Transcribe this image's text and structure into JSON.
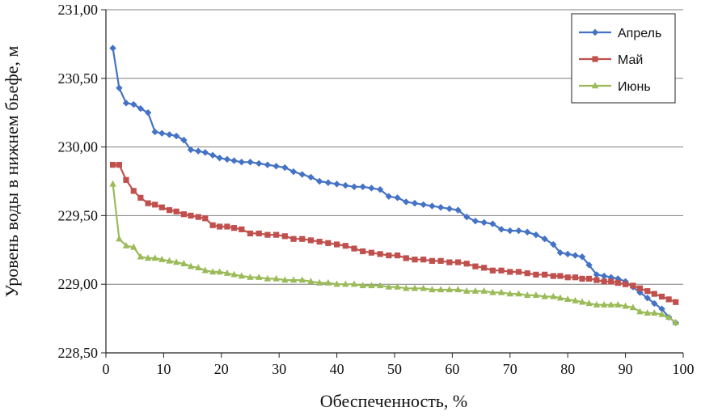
{
  "chart_data": {
    "type": "line",
    "xlabel": "Обеспеченность, %",
    "ylabel": "Уровень воды в нижнем бьефе, м",
    "xlim": [
      0,
      100
    ],
    "ylim": [
      228.5,
      231.0
    ],
    "x_ticks": [
      "0",
      "10",
      "20",
      "30",
      "40",
      "50",
      "60",
      "70",
      "80",
      "90",
      "100"
    ],
    "y_ticks": [
      "228,50",
      "229,00",
      "229,50",
      "230,00",
      "230,50",
      "231,00"
    ],
    "grid": "horizontal",
    "legend_position": "top-right",
    "series": [
      {
        "name": "Апрель",
        "color": "#4472C4",
        "marker": "diamond",
        "points": [
          [
            1.2,
            230.72
          ],
          [
            2.3,
            230.43
          ],
          [
            3.5,
            230.32
          ],
          [
            4.8,
            230.31
          ],
          [
            6.0,
            230.28
          ],
          [
            7.3,
            230.25
          ],
          [
            8.5,
            230.11
          ],
          [
            9.7,
            230.1
          ],
          [
            11.0,
            230.09
          ],
          [
            12.2,
            230.08
          ],
          [
            13.5,
            230.05
          ],
          [
            14.7,
            229.98
          ],
          [
            16.0,
            229.97
          ],
          [
            17.2,
            229.96
          ],
          [
            18.5,
            229.94
          ],
          [
            19.7,
            229.92
          ],
          [
            21.0,
            229.91
          ],
          [
            22.2,
            229.9
          ],
          [
            23.5,
            229.89
          ],
          [
            25.0,
            229.89
          ],
          [
            26.5,
            229.88
          ],
          [
            28.0,
            229.87
          ],
          [
            29.5,
            229.86
          ],
          [
            31.0,
            229.85
          ],
          [
            32.5,
            229.82
          ],
          [
            34.0,
            229.8
          ],
          [
            35.5,
            229.78
          ],
          [
            37.0,
            229.75
          ],
          [
            38.5,
            229.74
          ],
          [
            40.0,
            229.73
          ],
          [
            41.5,
            229.72
          ],
          [
            43.0,
            229.71
          ],
          [
            44.5,
            229.71
          ],
          [
            46.0,
            229.7
          ],
          [
            47.5,
            229.69
          ],
          [
            49.0,
            229.64
          ],
          [
            50.5,
            229.63
          ],
          [
            52.0,
            229.6
          ],
          [
            53.5,
            229.59
          ],
          [
            55.0,
            229.58
          ],
          [
            56.5,
            229.57
          ],
          [
            58.0,
            229.56
          ],
          [
            59.5,
            229.55
          ],
          [
            61.0,
            229.54
          ],
          [
            62.5,
            229.49
          ],
          [
            64.0,
            229.46
          ],
          [
            65.5,
            229.45
          ],
          [
            67.0,
            229.44
          ],
          [
            68.5,
            229.4
          ],
          [
            70.0,
            229.39
          ],
          [
            71.5,
            229.39
          ],
          [
            73.0,
            229.38
          ],
          [
            74.5,
            229.36
          ],
          [
            76.0,
            229.33
          ],
          [
            77.5,
            229.29
          ],
          [
            78.7,
            229.23
          ],
          [
            80.0,
            229.22
          ],
          [
            81.3,
            229.21
          ],
          [
            82.5,
            229.2
          ],
          [
            83.7,
            229.14
          ],
          [
            85.0,
            229.07
          ],
          [
            86.3,
            229.06
          ],
          [
            87.5,
            229.05
          ],
          [
            88.7,
            229.04
          ],
          [
            90.0,
            229.02
          ],
          [
            91.3,
            228.98
          ],
          [
            92.5,
            228.94
          ],
          [
            93.8,
            228.9
          ],
          [
            95.0,
            228.86
          ],
          [
            96.3,
            228.82
          ],
          [
            97.5,
            228.76
          ],
          [
            98.7,
            228.72
          ]
        ]
      },
      {
        "name": "Май",
        "color": "#C0504D",
        "marker": "square",
        "points": [
          [
            1.2,
            229.87
          ],
          [
            2.3,
            229.87
          ],
          [
            3.5,
            229.76
          ],
          [
            4.8,
            229.68
          ],
          [
            6.0,
            229.63
          ],
          [
            7.3,
            229.59
          ],
          [
            8.5,
            229.58
          ],
          [
            9.7,
            229.56
          ],
          [
            11.0,
            229.54
          ],
          [
            12.2,
            229.53
          ],
          [
            13.5,
            229.51
          ],
          [
            14.7,
            229.5
          ],
          [
            16.0,
            229.49
          ],
          [
            17.2,
            229.48
          ],
          [
            18.5,
            229.43
          ],
          [
            19.7,
            229.42
          ],
          [
            21.0,
            229.42
          ],
          [
            22.2,
            229.41
          ],
          [
            23.5,
            229.4
          ],
          [
            25.0,
            229.37
          ],
          [
            26.5,
            229.37
          ],
          [
            28.0,
            229.36
          ],
          [
            29.5,
            229.36
          ],
          [
            31.0,
            229.35
          ],
          [
            32.5,
            229.33
          ],
          [
            34.0,
            229.33
          ],
          [
            35.5,
            229.32
          ],
          [
            37.0,
            229.31
          ],
          [
            38.5,
            229.3
          ],
          [
            40.0,
            229.29
          ],
          [
            41.5,
            229.28
          ],
          [
            43.0,
            229.26
          ],
          [
            44.5,
            229.24
          ],
          [
            46.0,
            229.23
          ],
          [
            47.5,
            229.22
          ],
          [
            49.0,
            229.21
          ],
          [
            50.5,
            229.21
          ],
          [
            52.0,
            229.19
          ],
          [
            53.5,
            229.18
          ],
          [
            55.0,
            229.18
          ],
          [
            56.5,
            229.17
          ],
          [
            58.0,
            229.17
          ],
          [
            59.5,
            229.16
          ],
          [
            61.0,
            229.16
          ],
          [
            62.5,
            229.15
          ],
          [
            64.0,
            229.13
          ],
          [
            65.5,
            229.12
          ],
          [
            67.0,
            229.1
          ],
          [
            68.5,
            229.1
          ],
          [
            70.0,
            229.09
          ],
          [
            71.5,
            229.09
          ],
          [
            73.0,
            229.08
          ],
          [
            74.5,
            229.07
          ],
          [
            76.0,
            229.07
          ],
          [
            77.5,
            229.06
          ],
          [
            78.7,
            229.06
          ],
          [
            80.0,
            229.05
          ],
          [
            81.3,
            229.05
          ],
          [
            82.5,
            229.04
          ],
          [
            83.7,
            229.04
          ],
          [
            85.0,
            229.03
          ],
          [
            86.3,
            229.02
          ],
          [
            87.5,
            229.02
          ],
          [
            88.7,
            229.01
          ],
          [
            90.0,
            229.0
          ],
          [
            91.3,
            228.99
          ],
          [
            92.5,
            228.97
          ],
          [
            93.8,
            228.95
          ],
          [
            95.0,
            228.93
          ],
          [
            96.3,
            228.91
          ],
          [
            97.5,
            228.89
          ],
          [
            98.7,
            228.87
          ]
        ]
      },
      {
        "name": "Июнь",
        "color": "#9BBB59",
        "marker": "triangle",
        "points": [
          [
            1.2,
            229.73
          ],
          [
            2.3,
            229.33
          ],
          [
            3.5,
            229.28
          ],
          [
            4.8,
            229.27
          ],
          [
            6.0,
            229.2
          ],
          [
            7.3,
            229.19
          ],
          [
            8.5,
            229.19
          ],
          [
            9.7,
            229.18
          ],
          [
            11.0,
            229.17
          ],
          [
            12.2,
            229.16
          ],
          [
            13.5,
            229.15
          ],
          [
            14.7,
            229.13
          ],
          [
            16.0,
            229.12
          ],
          [
            17.2,
            229.1
          ],
          [
            18.5,
            229.09
          ],
          [
            19.7,
            229.09
          ],
          [
            21.0,
            229.08
          ],
          [
            22.2,
            229.07
          ],
          [
            23.5,
            229.06
          ],
          [
            25.0,
            229.05
          ],
          [
            26.5,
            229.05
          ],
          [
            28.0,
            229.04
          ],
          [
            29.5,
            229.04
          ],
          [
            31.0,
            229.03
          ],
          [
            32.5,
            229.03
          ],
          [
            34.0,
            229.03
          ],
          [
            35.5,
            229.02
          ],
          [
            37.0,
            229.01
          ],
          [
            38.5,
            229.01
          ],
          [
            40.0,
            229.0
          ],
          [
            41.5,
            229.0
          ],
          [
            43.0,
            229.0
          ],
          [
            44.5,
            228.99
          ],
          [
            46.0,
            228.99
          ],
          [
            47.5,
            228.99
          ],
          [
            49.0,
            228.98
          ],
          [
            50.5,
            228.98
          ],
          [
            52.0,
            228.97
          ],
          [
            53.5,
            228.97
          ],
          [
            55.0,
            228.97
          ],
          [
            56.5,
            228.96
          ],
          [
            58.0,
            228.96
          ],
          [
            59.5,
            228.96
          ],
          [
            61.0,
            228.96
          ],
          [
            62.5,
            228.95
          ],
          [
            64.0,
            228.95
          ],
          [
            65.5,
            228.95
          ],
          [
            67.0,
            228.94
          ],
          [
            68.5,
            228.94
          ],
          [
            70.0,
            228.93
          ],
          [
            71.5,
            228.93
          ],
          [
            73.0,
            228.92
          ],
          [
            74.5,
            228.92
          ],
          [
            76.0,
            228.91
          ],
          [
            77.5,
            228.91
          ],
          [
            78.7,
            228.9
          ],
          [
            80.0,
            228.89
          ],
          [
            81.3,
            228.88
          ],
          [
            82.5,
            228.87
          ],
          [
            83.7,
            228.86
          ],
          [
            85.0,
            228.85
          ],
          [
            86.3,
            228.85
          ],
          [
            87.5,
            228.85
          ],
          [
            88.7,
            228.85
          ],
          [
            90.0,
            228.84
          ],
          [
            91.3,
            228.83
          ],
          [
            92.5,
            228.8
          ],
          [
            93.8,
            228.79
          ],
          [
            95.0,
            228.79
          ],
          [
            96.3,
            228.78
          ],
          [
            97.5,
            228.76
          ],
          [
            98.7,
            228.72
          ]
        ]
      }
    ]
  }
}
